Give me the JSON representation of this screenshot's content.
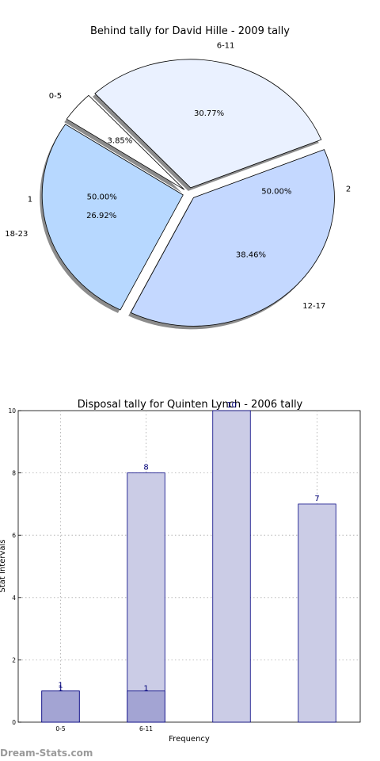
{
  "colors": {
    "pie_outer": [
      "#eaf1ff",
      "#ffffff",
      "#b7d8ff",
      "#c4d8ff"
    ],
    "pie_inner": "#eef2ff",
    "bar_back": "#cbcce6",
    "bar_front": "#a3a4d3",
    "bar_edge": "#000080",
    "label_blue": "#00007a",
    "watermark": "#9a9a9a"
  },
  "chart_data": [
    {
      "type": "pie",
      "title": "Behind tally for David Hille - 2009 tally",
      "outer_ring": {
        "labels": [
          "6-11",
          "0-5",
          "18-23",
          "12-17"
        ],
        "values": [
          30.77,
          3.85,
          26.92,
          38.46
        ],
        "pct_labels": [
          "30.77%",
          "3.85%",
          "26.92%",
          "38.46%"
        ]
      },
      "inner_ring": {
        "labels": [
          "1",
          "2"
        ],
        "values": [
          50.0,
          50.0
        ],
        "pct_labels": [
          "50.00%",
          "50.00%"
        ]
      },
      "shadow": true,
      "exploded": true
    },
    {
      "type": "bar",
      "title": "Disposal tally for Quinten Lynch - 2006 tally",
      "xlabel": "Frequency",
      "ylabel": "Stat Intervals",
      "categories": [
        "0-5",
        "6-11",
        "",
        ""
      ],
      "series": [
        {
          "values": [
            1,
            8,
            10,
            7
          ]
        },
        {
          "values": [
            1,
            1,
            0,
            0
          ]
        }
      ],
      "value_labels": [
        [
          "1",
          "8",
          "10",
          "7"
        ],
        [
          "1",
          "1",
          "",
          ""
        ]
      ],
      "yticks": [
        "0",
        "2",
        "4",
        "6",
        "8",
        "10"
      ],
      "ylim": [
        0,
        10
      ],
      "grid": true
    }
  ],
  "watermark": "Dream-Stats.com"
}
